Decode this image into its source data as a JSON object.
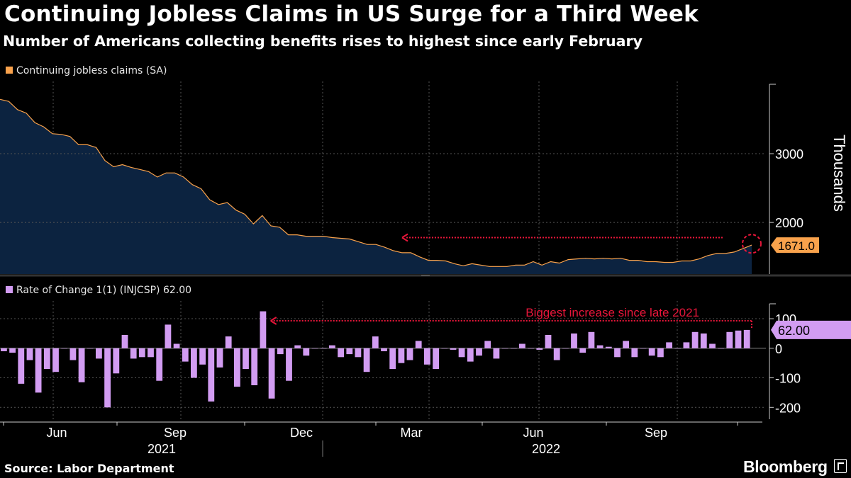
{
  "header": {
    "title": "Continuing Jobless Claims in US Surge for a Third Week",
    "subtitle": "Number of Americans collecting benefits rises to highest since early February"
  },
  "footer": {
    "source": "Source: Labor Department",
    "brand": "Bloomberg"
  },
  "colors": {
    "background": "#000000",
    "area_fill": "#0c2340",
    "line": "#f9a24c",
    "bars": "#d29cf2",
    "annotation": "#e8163a",
    "grid": "#555555"
  },
  "chart_data": [
    {
      "type": "area",
      "legend": "Continuing jobless claims (SA)",
      "ylabel": "Thousands",
      "yticks": [
        2000,
        3000
      ],
      "ylim": [
        1250,
        4050
      ],
      "last_value_label": "1671.0",
      "x_week_index_range": [
        0,
        95
      ],
      "values": [
        3790,
        3760,
        3640,
        3590,
        3450,
        3390,
        3290,
        3280,
        3250,
        3130,
        3130,
        3090,
        2900,
        2810,
        2840,
        2800,
        2770,
        2740,
        2660,
        2720,
        2720,
        2660,
        2550,
        2490,
        2330,
        2260,
        2290,
        2180,
        2120,
        1980,
        2100,
        1950,
        1930,
        1820,
        1820,
        1800,
        1800,
        1800,
        1780,
        1770,
        1760,
        1720,
        1680,
        1680,
        1640,
        1590,
        1560,
        1560,
        1500,
        1450,
        1450,
        1440,
        1400,
        1370,
        1400,
        1380,
        1360,
        1360,
        1360,
        1380,
        1380,
        1430,
        1380,
        1430,
        1410,
        1460,
        1470,
        1480,
        1470,
        1480,
        1470,
        1480,
        1450,
        1450,
        1430,
        1430,
        1420,
        1420,
        1440,
        1440,
        1470,
        1520,
        1550,
        1550,
        1570,
        1620,
        1671
      ],
      "annotation_level": 1780,
      "annotation_start_index": 46
    },
    {
      "type": "bar",
      "legend": "Rate of Change 1(1) (INJCSP) 62.00",
      "yticks": [
        100,
        0,
        -100,
        -200
      ],
      "ylim": [
        -240,
        160
      ],
      "last_value_label": "62.00",
      "annotation_text": "Biggest increase since late 2021",
      "annotation_level": 93,
      "annotation_start_index": 31,
      "values": [
        -10,
        -15,
        -120,
        -40,
        -150,
        -70,
        -80,
        0,
        -40,
        -115,
        0,
        -35,
        -200,
        -85,
        45,
        -35,
        -30,
        -30,
        -110,
        80,
        15,
        -45,
        -100,
        -55,
        -180,
        -65,
        40,
        -130,
        -70,
        -125,
        125,
        -170,
        -20,
        -110,
        10,
        -25,
        0,
        0,
        10,
        -30,
        -20,
        -30,
        -80,
        40,
        -10,
        -70,
        -50,
        -40,
        25,
        -55,
        -70,
        0,
        -5,
        -30,
        -45,
        -25,
        25,
        -35,
        0,
        0,
        15,
        0,
        -5,
        45,
        -40,
        0,
        50,
        -15,
        55,
        10,
        5,
        -30,
        25,
        -30,
        0,
        -25,
        -30,
        20,
        0,
        20,
        55,
        50,
        15,
        0,
        55,
        60,
        62
      ]
    }
  ],
  "x_axis": {
    "month_labels": [
      "Jun",
      "Sep",
      "Dec",
      "Mar",
      "Jun",
      "Sep"
    ],
    "year_labels": [
      "2021",
      "2022"
    ]
  }
}
